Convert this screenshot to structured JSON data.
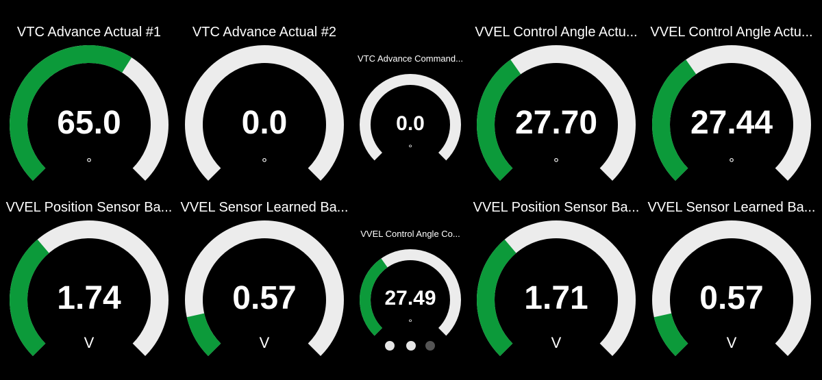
{
  "colors": {
    "track": "#ececec",
    "fill": "#0c9a3a",
    "background": "#000000"
  },
  "gauges": [
    {
      "title": "VTC Advance Actual #1",
      "value": "65.0",
      "unit": "°",
      "fraction": 0.62
    },
    {
      "title": "VTC Advance Actual #2",
      "value": "0.0",
      "unit": "°",
      "fraction": 0.0
    },
    {
      "title": "VTC Advance Command...",
      "value": "0.0",
      "unit": "°",
      "fraction": 0.0
    },
    {
      "title": "VVEL Control Angle Actu...",
      "value": "27.70",
      "unit": "°",
      "fraction": 0.37
    },
    {
      "title": "VVEL Control Angle Actu...",
      "value": "27.44",
      "unit": "°",
      "fraction": 0.37
    },
    {
      "title": "VVEL Position Sensor Ba...",
      "value": "1.74",
      "unit": "V",
      "fraction": 0.35
    },
    {
      "title": "VVEL Sensor Learned Ba...",
      "value": "0.57",
      "unit": "V",
      "fraction": 0.12
    },
    {
      "title": "VVEL Control Angle Co...",
      "value": "27.49",
      "unit": "°",
      "fraction": 0.37
    },
    {
      "title": "VVEL Position Sensor Ba...",
      "value": "1.71",
      "unit": "V",
      "fraction": 0.35
    },
    {
      "title": "VVEL Sensor Learned Ba...",
      "value": "0.57",
      "unit": "V",
      "fraction": 0.12
    }
  ],
  "pager": {
    "page_count": 3,
    "current_page": 3
  }
}
